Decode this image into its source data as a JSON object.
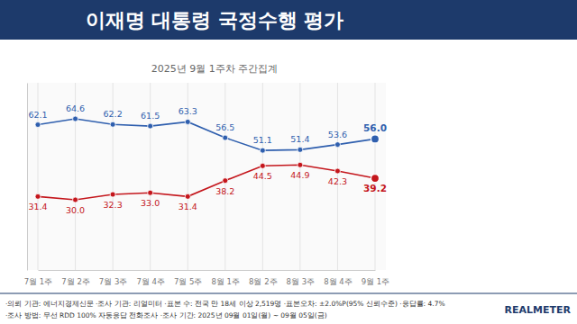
{
  "chart_data": {
    "type": "line",
    "title": "이재명 대통령 국정수행 평가",
    "subtitle": "2025년 9월 1주차 주간집계",
    "categories": [
      "7월 1주",
      "7월 2주",
      "7월 3주",
      "7월 4주",
      "7월 5주",
      "8월 1주",
      "8월 2주",
      "8월 3주",
      "8월 4주",
      "9월 1주"
    ],
    "series": [
      {
        "color": "#2f5fae",
        "values": [
          62.1,
          64.6,
          62.2,
          61.5,
          63.3,
          56.5,
          51.1,
          51.4,
          53.6,
          56.0
        ],
        "value_labels": [
          "62.1",
          "64.6",
          "62.2",
          "61.5",
          "63.3",
          "56.5",
          "51.1",
          "51.4",
          "53.6",
          "56.0"
        ]
      },
      {
        "color": "#c4161c",
        "values": [
          31.4,
          30.0,
          32.3,
          33.0,
          31.4,
          38.2,
          44.5,
          44.9,
          42.3,
          39.2
        ],
        "value_labels": [
          "31.4",
          "30.0",
          "32.3",
          "33.0",
          "31.4",
          "38.2",
          "44.5",
          "44.9",
          "42.3",
          "39.2"
        ]
      }
    ],
    "ylim": [
      0,
      80
    ],
    "grid": true,
    "data_labels": true,
    "tick_labels": "x",
    "marker": "circle",
    "annotations": [
      "·의뢰 기관: 에너지경제신문 ·조사 기관: 리얼미터 ·표본 수: 전국 만 18세 이상 2,519명 ·표본오차: ±2.0%P(95% 신뢰수준) ·응답률: 4.7%",
      "·조사 방법: 무선 RDD 100% 자동응답 전화조사 ·조사 기간: 2025년 09월 01일(월) ~ 09월 05일(금)",
      "REALMETER"
    ]
  }
}
